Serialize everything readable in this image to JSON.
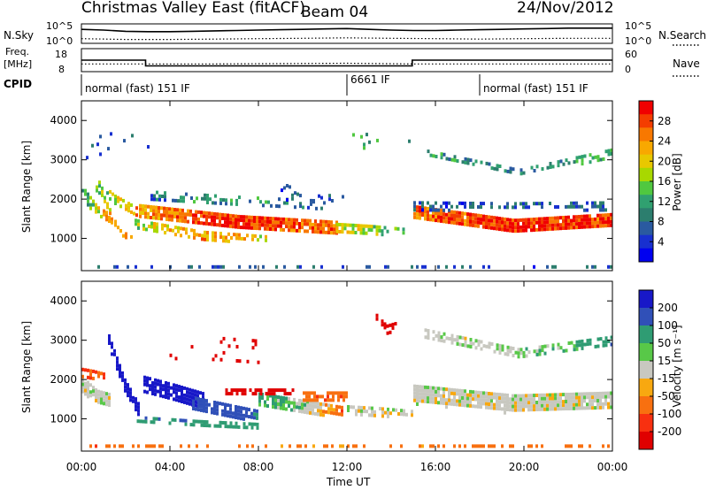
{
  "header": {
    "station": "Christmas Valley East (fitACF)",
    "beam": "Beam 04",
    "date": "24/Nov/2012"
  },
  "summary": {
    "left_label_1": "N.Sky",
    "left_label_2": "Freq.",
    "left_label_3": "[MHz]",
    "left_label_4": "CPID",
    "right_label_1": "N.Search",
    "right_label_2": "Nave",
    "top_left_ticks": [
      "10^5",
      "10^0"
    ],
    "top_right_ticks": [
      "10^5",
      "10^0"
    ],
    "freq_ticks": [
      "18",
      "8"
    ],
    "nave_ticks": [
      "60",
      "0"
    ],
    "cpid_segments": [
      {
        "label": "normal (fast) 151 IF",
        "start_hour": 0
      },
      {
        "label": "6661 IF",
        "start_hour": 12
      },
      {
        "label": "normal (fast) 151 IF",
        "start_hour": 18
      }
    ]
  },
  "panels": {
    "ylabel": "Slant Range [km]",
    "xlabel": "Time UT",
    "yticks": [
      "1000",
      "2000",
      "3000",
      "4000"
    ],
    "xticks": [
      "00:00",
      "04:00",
      "08:00",
      "12:00",
      "16:00",
      "20:00",
      "00:00"
    ],
    "power_colorbar": {
      "label": "Power [dB]",
      "ticks": [
        "28",
        "24",
        "20",
        "16",
        "12",
        "8",
        "4"
      ],
      "colors": [
        "#f00000",
        "#f43d00",
        "#f87800",
        "#f8a800",
        "#e8c800",
        "#a8d800",
        "#50c840",
        "#30a070",
        "#2c7e6e",
        "#2a5aa0",
        "#1830d0",
        "#0000f0"
      ]
    },
    "velocity_colorbar": {
      "label": "Velocity [m s⁻¹]",
      "ticks": [
        "200",
        "100",
        "50",
        "15",
        "-15",
        "-50",
        "-100",
        "-200"
      ],
      "colors": [
        "#1818c8",
        "#3050b8",
        "#2f9c73",
        "#58c848",
        "#c8c8c0",
        "#f8a810",
        "#f87010",
        "#f83010",
        "#e00000"
      ]
    }
  },
  "chart_data": [
    {
      "type": "line",
      "title": "N.Sky / N.Search",
      "x_range_hours": [
        0,
        24
      ],
      "series": [
        {
          "name": "N.Sky",
          "style": "solid",
          "x": [
            0,
            1,
            2,
            3,
            4,
            5,
            6,
            7,
            8,
            9,
            10,
            11,
            12,
            13,
            14,
            15,
            16,
            17,
            18,
            19,
            20,
            21,
            22,
            23,
            24
          ],
          "log10_y": [
            3.6,
            3.4,
            3.1,
            3.0,
            3.0,
            3.1,
            3.2,
            3.3,
            3.4,
            3.5,
            3.6,
            3.7,
            3.8,
            3.6,
            3.4,
            3.3,
            3.3,
            3.4,
            3.5,
            3.6,
            3.7,
            3.8,
            3.9,
            3.9,
            3.9
          ]
        },
        {
          "name": "N.Search",
          "style": "dotted",
          "x": [
            0,
            2,
            4,
            6,
            8,
            10,
            12,
            14,
            16,
            18,
            20,
            22,
            24
          ],
          "log10_y": [
            1.2,
            1.0,
            1.0,
            1.1,
            1.2,
            1.3,
            1.4,
            1.3,
            1.2,
            1.1,
            1.2,
            1.3,
            1.3
          ]
        }
      ]
    },
    {
      "type": "line",
      "title": "Freq / Nave",
      "x_range_hours": [
        0,
        24
      ],
      "series": [
        {
          "name": "Freq [MHz]",
          "style": "solid",
          "x": [
            0,
            2.9,
            2.9,
            14.95,
            14.95,
            24
          ],
          "y": [
            13,
            13,
            10,
            10,
            13,
            13
          ]
        },
        {
          "name": "Nave",
          "style": "dotted",
          "x": [
            0,
            3,
            6,
            12,
            15,
            18,
            24
          ],
          "y": [
            20,
            20,
            20,
            22,
            20,
            20,
            20
          ]
        }
      ]
    },
    {
      "type": "heatmap",
      "title": "Power [dB]",
      "x_range_hours": [
        0,
        24
      ],
      "y_range_km": [
        180,
        4500
      ],
      "value_range": [
        0,
        30
      ],
      "features": [
        {
          "kind": "band",
          "x0": 0.0,
          "x1": 24.0,
          "center_km": [
            300,
            300,
            300
          ],
          "width_km": [
            40,
            40,
            40
          ],
          "value": [
            6,
            6,
            6
          ],
          "density": 0.3
        },
        {
          "kind": "band",
          "x0": 0.0,
          "x1": 1.4,
          "center_km": [
            2200,
            1700,
            1500
          ],
          "width_km": [
            300,
            250,
            200
          ],
          "value": [
            10,
            18,
            26
          ],
          "density": 0.7
        },
        {
          "kind": "band",
          "x0": 0.4,
          "x1": 2.5,
          "center_km": [
            2500,
            2000,
            1700
          ],
          "width_km": [
            300,
            250,
            200
          ],
          "value": [
            12,
            18,
            22
          ],
          "density": 0.55
        },
        {
          "kind": "band",
          "x0": 1.0,
          "x1": 2.3,
          "center_km": [
            2000,
            1200,
            1000
          ],
          "width_km": [
            150,
            120,
            100
          ],
          "value": [
            18,
            22,
            20
          ],
          "density": 0.6
        },
        {
          "kind": "band",
          "x0": 2.6,
          "x1": 11.5,
          "center_km": [
            1700,
            1450,
            1300
          ],
          "width_km": [
            350,
            300,
            300
          ],
          "value": [
            22,
            28,
            24
          ],
          "density": 0.9
        },
        {
          "kind": "band",
          "x0": 2.4,
          "x1": 8.5,
          "center_km": [
            1400,
            1100,
            1000
          ],
          "width_km": [
            200,
            200,
            150
          ],
          "value": [
            16,
            22,
            18
          ],
          "density": 0.55
        },
        {
          "kind": "band",
          "x0": 3.0,
          "x1": 10.5,
          "center_km": [
            2100,
            2000,
            1900
          ],
          "width_km": [
            250,
            200,
            200
          ],
          "value": [
            8,
            10,
            8
          ],
          "density": 0.35
        },
        {
          "kind": "band",
          "x0": 11.5,
          "x1": 14.5,
          "center_km": [
            1300,
            1250,
            1200
          ],
          "width_km": [
            200,
            200,
            150
          ],
          "value": [
            18,
            16,
            12
          ],
          "density": 0.55
        },
        {
          "kind": "band",
          "x0": 15.0,
          "x1": 24.0,
          "center_km": [
            1700,
            1350,
            1500
          ],
          "width_km": [
            300,
            300,
            300
          ],
          "value": [
            24,
            28,
            26
          ],
          "density": 0.95
        },
        {
          "kind": "band",
          "x0": 15.0,
          "x1": 24.0,
          "center_km": [
            1850,
            1850,
            1850
          ],
          "width_km": [
            200,
            150,
            200
          ],
          "value": [
            6,
            6,
            6
          ],
          "density": 0.5
        },
        {
          "kind": "band",
          "x0": 15.5,
          "x1": 24.0,
          "center_km": [
            3200,
            2700,
            3200
          ],
          "width_km": [
            150,
            150,
            200
          ],
          "value": [
            10,
            8,
            12
          ],
          "density": 0.45
        },
        {
          "kind": "band",
          "x0": 0.2,
          "x1": 3.0,
          "center_km": [
            3300,
            3500,
            3300
          ],
          "width_km": [
            500,
            500,
            500
          ],
          "value": [
            6,
            6,
            6
          ],
          "density": 0.08
        },
        {
          "kind": "band",
          "x0": 9.0,
          "x1": 12.0,
          "center_km": [
            2200,
            1800,
            2400
          ],
          "width_km": [
            500,
            500,
            500
          ],
          "value": [
            6,
            6,
            6
          ],
          "density": 0.15
        },
        {
          "kind": "band",
          "x0": 12.0,
          "x1": 15.0,
          "center_km": [
            3600,
            3400,
            3300
          ],
          "width_km": [
            400,
            400,
            400
          ],
          "value": [
            10,
            12,
            10
          ],
          "density": 0.05
        }
      ]
    },
    {
      "type": "heatmap",
      "title": "Velocity [m s⁻¹]",
      "x_range_hours": [
        0,
        24
      ],
      "y_range_km": [
        180,
        4500
      ],
      "value_range": [
        -250,
        250
      ],
      "features": [
        {
          "kind": "band",
          "x0": 0.0,
          "x1": 24.0,
          "center_km": [
            320,
            320,
            320
          ],
          "width_km": [
            60,
            60,
            60
          ],
          "value": [
            -60,
            -40,
            -60
          ],
          "density": 0.35
        },
        {
          "kind": "band",
          "x0": 0.0,
          "x1": 1.3,
          "center_km": [
            1900,
            1600,
            1500
          ],
          "width_km": [
            400,
            300,
            300
          ],
          "value": [
            0,
            0,
            0
          ],
          "density": 0.9
        },
        {
          "kind": "band",
          "x0": 0.0,
          "x1": 1.0,
          "center_km": [
            2200,
            2150,
            2100
          ],
          "width_km": [
            200,
            200,
            150
          ],
          "value": [
            -80,
            -80,
            -80
          ],
          "density": 0.7
        },
        {
          "kind": "band",
          "x0": 1.2,
          "x1": 2.6,
          "center_km": [
            3000,
            1900,
            1200
          ],
          "width_km": [
            300,
            300,
            300
          ],
          "value": [
            230,
            230,
            220
          ],
          "density": 0.85
        },
        {
          "kind": "band",
          "x0": 2.8,
          "x1": 5.5,
          "center_km": [
            1900,
            1700,
            1500
          ],
          "width_km": [
            400,
            400,
            350
          ],
          "value": [
            220,
            200,
            180
          ],
          "density": 0.85
        },
        {
          "kind": "band",
          "x0": 5.0,
          "x1": 8.0,
          "center_km": [
            1400,
            1250,
            1100
          ],
          "width_km": [
            350,
            300,
            250
          ],
          "value": [
            120,
            110,
            90
          ],
          "density": 0.8
        },
        {
          "kind": "band",
          "x0": 2.5,
          "x1": 8.0,
          "center_km": [
            1000,
            900,
            850
          ],
          "width_km": [
            150,
            150,
            100
          ],
          "value": [
            70,
            60,
            50
          ],
          "density": 0.55
        },
        {
          "kind": "band",
          "x0": 8.0,
          "x1": 11.8,
          "center_km": [
            1500,
            1350,
            1200
          ],
          "width_km": [
            350,
            300,
            250
          ],
          "value": [
            40,
            20,
            -60
          ],
          "density": 0.8
        },
        {
          "kind": "band",
          "x0": 6.5,
          "x1": 9.5,
          "center_km": [
            1700,
            1700,
            1700
          ],
          "width_km": [
            150,
            150,
            150
          ],
          "value": [
            -180,
            -180,
            -180
          ],
          "density": 0.6
        },
        {
          "kind": "band",
          "x0": 10.0,
          "x1": 12.0,
          "center_km": [
            1600,
            1600,
            1600
          ],
          "width_km": [
            200,
            200,
            200
          ],
          "value": [
            -60,
            -60,
            -60
          ],
          "density": 0.7
        },
        {
          "kind": "band",
          "x0": 12.0,
          "x1": 15.0,
          "center_km": [
            1250,
            1200,
            1150
          ],
          "width_km": [
            200,
            200,
            150
          ],
          "value": [
            0,
            0,
            0
          ],
          "density": 0.6
        },
        {
          "kind": "band",
          "x0": 15.0,
          "x1": 24.0,
          "center_km": [
            1650,
            1400,
            1500
          ],
          "width_km": [
            450,
            450,
            400
          ],
          "value": [
            0,
            0,
            0
          ],
          "density": 0.95
        },
        {
          "kind": "band",
          "x0": 15.5,
          "x1": 24.0,
          "center_km": [
            3200,
            2700,
            3000
          ],
          "width_km": [
            200,
            200,
            250
          ],
          "value": [
            0,
            10,
            60
          ],
          "density": 0.5
        },
        {
          "kind": "band",
          "x0": 3.5,
          "x1": 8.5,
          "center_km": [
            2700,
            2800,
            2700
          ],
          "width_km": [
            600,
            600,
            600
          ],
          "value": [
            -200,
            -200,
            -200
          ],
          "density": 0.06
        },
        {
          "kind": "band",
          "x0": 13.3,
          "x1": 14.2,
          "center_km": [
            3600,
            3300,
            3400
          ],
          "width_km": [
            150,
            200,
            150
          ],
          "value": [
            -230,
            -230,
            -230
          ],
          "density": 0.7
        }
      ]
    }
  ]
}
